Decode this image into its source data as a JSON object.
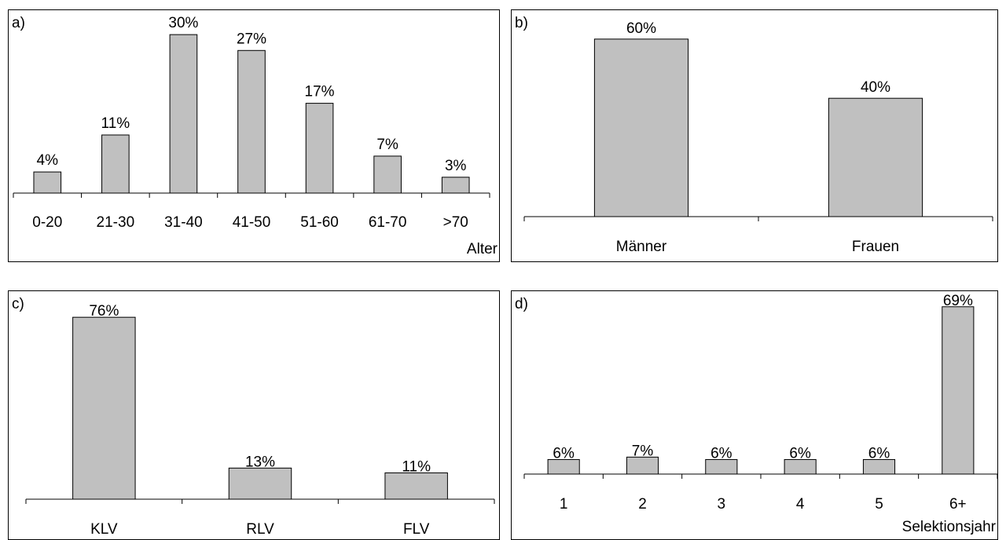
{
  "chart_data": [
    {
      "type": "bar",
      "panel_label": "a)",
      "xlabel": "Alter",
      "ylabel": "",
      "categories": [
        "0-20",
        "21-30",
        "31-40",
        "41-50",
        "51-60",
        "61-70",
        ">70"
      ],
      "values": [
        4,
        11,
        30,
        27,
        17,
        7,
        3
      ],
      "data_labels": [
        "4%",
        "11%",
        "30%",
        "27%",
        "17%",
        "7%",
        "3%"
      ],
      "bar_color": "#c0c0c0",
      "grid": false,
      "legend": "none"
    },
    {
      "type": "bar",
      "panel_label": "b)",
      "xlabel": "",
      "ylabel": "",
      "categories": [
        "Männer",
        "Frauen"
      ],
      "values": [
        60,
        40
      ],
      "data_labels": [
        "60%",
        "40%"
      ],
      "bar_color": "#c0c0c0",
      "grid": false,
      "legend": "none"
    },
    {
      "type": "bar",
      "panel_label": "c)",
      "xlabel": "",
      "ylabel": "",
      "categories": [
        "KLV",
        "RLV",
        "FLV"
      ],
      "values": [
        76,
        13,
        11
      ],
      "data_labels": [
        "76%",
        "13%",
        "11%"
      ],
      "bar_color": "#c0c0c0",
      "grid": false,
      "legend": "none"
    },
    {
      "type": "bar",
      "panel_label": "d)",
      "xlabel": "Selektionsjahr",
      "ylabel": "",
      "categories": [
        "1",
        "2",
        "3",
        "4",
        "5",
        "6+"
      ],
      "values": [
        6,
        7,
        6,
        6,
        6,
        69
      ],
      "data_labels": [
        "6%",
        "7%",
        "6%",
        "6%",
        "6%",
        "69%"
      ],
      "bar_color": "#c0c0c0",
      "grid": false,
      "legend": "none"
    }
  ]
}
